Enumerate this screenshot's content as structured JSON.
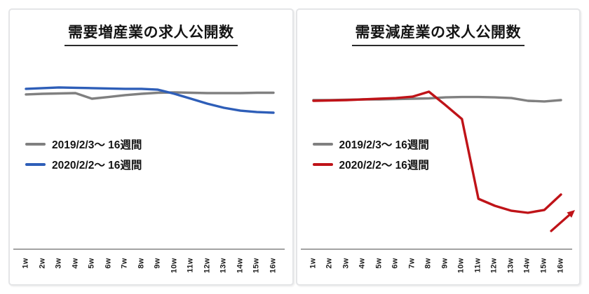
{
  "page": {
    "background": "#ffffff",
    "border_color": "#e4e5e7"
  },
  "chart_data": [
    {
      "type": "line",
      "title": "需要増産業の求人公開数",
      "xlabel": "",
      "ylabel": "",
      "ylim": [
        0,
        100
      ],
      "value_note": "relative level 0-100 (no numeric y-axis shown in source chart)",
      "grid": false,
      "y_axis_visible": false,
      "legend_position": "center-left",
      "axis_color": "#a3a3a3",
      "categories": [
        "1w",
        "2w",
        "3w",
        "4w",
        "5w",
        "6w",
        "7w",
        "8w",
        "9w",
        "10w",
        "11w",
        "12w",
        "13w",
        "14w",
        "15w",
        "16w"
      ],
      "series": [
        {
          "name": "2019/2/3〜 16週間",
          "color": "#808080",
          "values": [
            90.6,
            91.0,
            91.2,
            91.4,
            88.1,
            89.1,
            90.2,
            91.0,
            91.6,
            91.8,
            91.6,
            91.4,
            91.4,
            91.4,
            91.6,
            91.6
          ]
        },
        {
          "name": "2020/2/2〜 16週間",
          "color": "#2e5eb8",
          "values": [
            93.9,
            94.3,
            94.7,
            94.5,
            94.3,
            94.1,
            93.9,
            93.9,
            93.4,
            91.0,
            88.1,
            85.2,
            82.8,
            81.1,
            80.3,
            79.9
          ]
        }
      ],
      "annotation": null
    },
    {
      "type": "line",
      "title": "需要減産業の求人公開数",
      "xlabel": "",
      "ylabel": "",
      "ylim": [
        0,
        100
      ],
      "value_note": "relative level 0-100 (no numeric y-axis shown in source chart)",
      "grid": false,
      "y_axis_visible": false,
      "legend_position": "center-left",
      "axis_color": "#a3a3a3",
      "categories": [
        "1w",
        "2w",
        "3w",
        "4w",
        "5w",
        "6w",
        "7w",
        "8w",
        "9w",
        "10w",
        "11w",
        "12w",
        "13w",
        "14w",
        "15w",
        "16w"
      ],
      "series": [
        {
          "name": "2019/2/3〜 16週間",
          "color": "#808080",
          "values": [
            87.3,
            87.3,
            87.5,
            87.7,
            87.7,
            87.9,
            88.1,
            88.3,
            88.9,
            89.1,
            89.1,
            88.9,
            88.5,
            86.9,
            86.5,
            87.3
          ]
        },
        {
          "name": "2020/2/2〜 16週間",
          "color": "#bf1318",
          "values": [
            86.9,
            87.1,
            87.3,
            87.7,
            88.1,
            88.5,
            89.3,
            92.2,
            84.4,
            76.2,
            29.5,
            25.4,
            22.5,
            21.3,
            23.0,
            32.0
          ]
        }
      ],
      "annotation": "up-right-arrow"
    }
  ]
}
